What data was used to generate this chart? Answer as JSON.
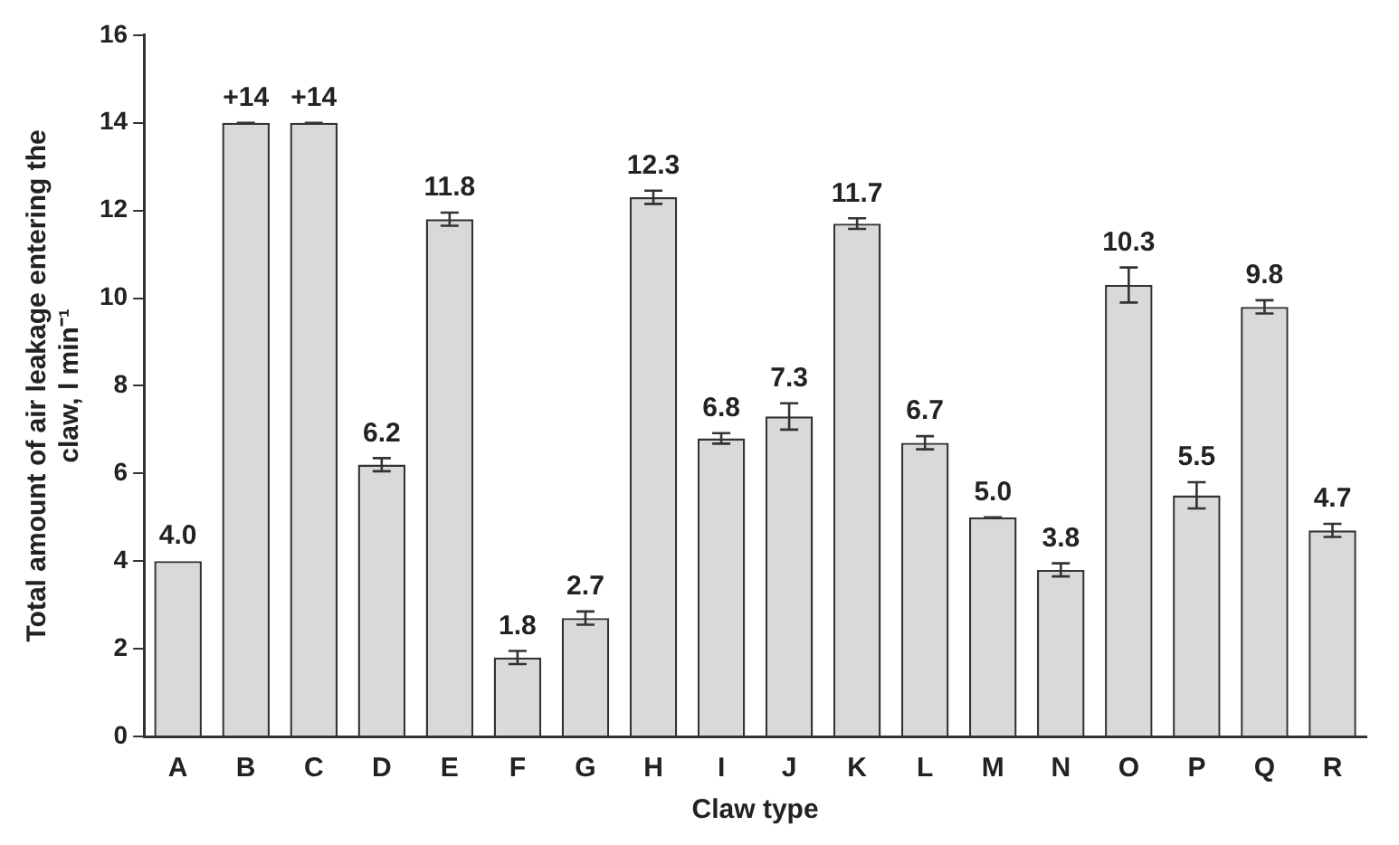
{
  "chart_data": {
    "type": "bar",
    "xlabel": "Claw type",
    "ylabel": "Total amount of air leakage entering the claw, l min⁻¹",
    "categories": [
      "A",
      "B",
      "C",
      "D",
      "E",
      "F",
      "G",
      "H",
      "I",
      "J",
      "K",
      "L",
      "M",
      "N",
      "O",
      "P",
      "Q",
      "R"
    ],
    "values": [
      4.0,
      14,
      14,
      6.2,
      11.8,
      1.8,
      2.7,
      12.3,
      6.8,
      7.3,
      11.7,
      6.7,
      5.0,
      3.8,
      10.3,
      5.5,
      9.8,
      4.7
    ],
    "errors": [
      null,
      0,
      0,
      0.15,
      0.15,
      0.15,
      0.15,
      0.15,
      0.12,
      0.3,
      0.12,
      0.15,
      0,
      0.15,
      0.4,
      0.3,
      0.15,
      0.15
    ],
    "value_labels": [
      "4.0",
      "+14",
      "+14",
      "6.2",
      "11.8",
      "1.8",
      "2.7",
      "12.3",
      "6.8",
      "7.3",
      "11.7",
      "6.7",
      "5.0",
      "3.8",
      "10.3",
      "5.5",
      "9.8",
      "4.7"
    ],
    "color": "#d9d9d9",
    "ylim": [
      0,
      16
    ],
    "yticks": [
      0,
      2,
      4,
      6,
      8,
      10,
      12,
      14,
      16
    ],
    "grid": false,
    "legend": false
  }
}
